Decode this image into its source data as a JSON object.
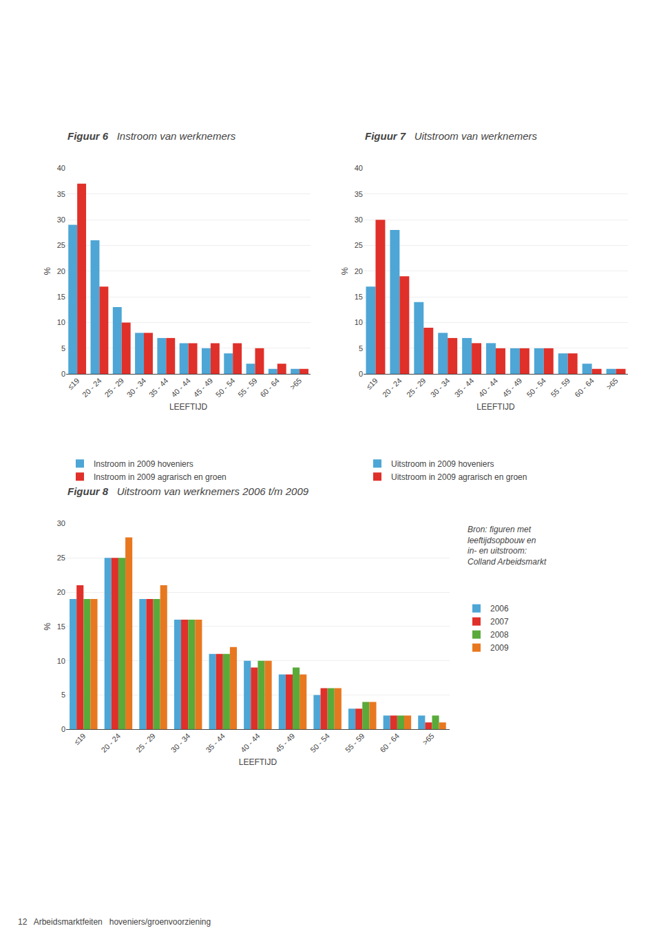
{
  "chart_data": [
    {
      "type": "bar",
      "title": "Figuur 6",
      "subtitle": "Instroom van werknemers",
      "xlabel": "LEEFTIJD",
      "ylabel": "%",
      "categories": [
        "≤19",
        "20 - 24",
        "25 - 29",
        "30 - 34",
        "35 - 44",
        "40 - 44",
        "45 - 49",
        "50 - 54",
        "55 - 59",
        "60 - 64",
        ">65"
      ],
      "series": [
        {
          "name": "Instroom in 2009 hoveniers",
          "color": "#4da6d5",
          "values": [
            29,
            26,
            13,
            8,
            7,
            6,
            5,
            4,
            2,
            1,
            1
          ]
        },
        {
          "name": "Instroom in 2009 agrarisch en groen",
          "color": "#e0302a",
          "values": [
            37,
            17,
            10,
            8,
            7,
            6,
            6,
            6,
            5,
            2,
            1
          ]
        }
      ],
      "ylim": [
        0,
        40
      ],
      "yticks": [
        0,
        5,
        10,
        15,
        20,
        25,
        30,
        35,
        40
      ],
      "grid": true,
      "legend": "below"
    },
    {
      "type": "bar",
      "title": "Figuur 7",
      "subtitle": "Uitstroom van werknemers",
      "xlabel": "LEEFTIJD",
      "ylabel": "%",
      "categories": [
        "≤19",
        "20 - 24",
        "25 - 29",
        "30 - 34",
        "35 - 44",
        "40 - 44",
        "45 - 49",
        "50 - 54",
        "55 - 59",
        "60 - 64",
        ">65"
      ],
      "series": [
        {
          "name": "Uitstroom in 2009 hoveniers",
          "color": "#4da6d5",
          "values": [
            17,
            28,
            14,
            8,
            7,
            6,
            5,
            5,
            4,
            2,
            1
          ]
        },
        {
          "name": "Uitstroom in 2009 agrarisch en groen",
          "color": "#e0302a",
          "values": [
            30,
            19,
            9,
            7,
            6,
            5,
            5,
            5,
            4,
            1,
            1
          ]
        }
      ],
      "ylim": [
        0,
        40
      ],
      "yticks": [
        0,
        5,
        10,
        15,
        20,
        25,
        30,
        35,
        40
      ],
      "grid": true,
      "legend": "below"
    },
    {
      "type": "bar",
      "title": "Figuur 8",
      "subtitle": "Uitstroom van werknemers 2006 t/m 2009",
      "xlabel": "LEEFTIJD",
      "ylabel": "%",
      "categories": [
        "≤19",
        "20 - 24",
        "25 - 29",
        "30 - 34",
        "35 - 44",
        "40 - 44",
        "45 - 49",
        "50 - 54",
        "55 - 59",
        "60 - 64",
        ">65"
      ],
      "series": [
        {
          "name": "2006",
          "color": "#4da6d5",
          "values": [
            19,
            25,
            19,
            16,
            11,
            10,
            8,
            5,
            3,
            2,
            2
          ]
        },
        {
          "name": "2007",
          "color": "#e0302a",
          "values": [
            21,
            25,
            19,
            16,
            11,
            9,
            8,
            6,
            3,
            2,
            1
          ]
        },
        {
          "name": "2008",
          "color": "#5aaa3a",
          "values": [
            19,
            25,
            19,
            16,
            11,
            10,
            9,
            6,
            4,
            2,
            2
          ]
        },
        {
          "name": "2009",
          "color": "#e87820",
          "values": [
            19,
            28,
            21,
            16,
            12,
            10,
            8,
            6,
            4,
            2,
            1
          ]
        }
      ],
      "ylim": [
        0,
        30
      ],
      "yticks": [
        0,
        5,
        10,
        15,
        20,
        25,
        30
      ],
      "grid": true,
      "legend": "right",
      "annotations": [
        "Bron: figuren met\nleeftijdsopbouw en\nin- en uitstroom:\nColland Arbeidsmarkt"
      ]
    }
  ],
  "annotations": [
    "12",
    "Arbeidsmarktfeiten",
    "hoveniers/groenvoorziening"
  ]
}
